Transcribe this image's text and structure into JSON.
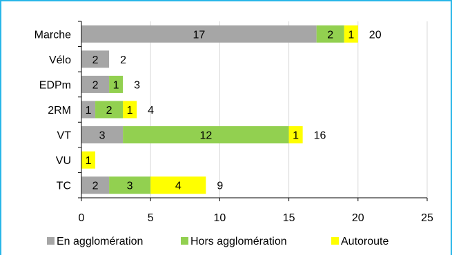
{
  "chart_data": {
    "type": "bar",
    "orientation": "horizontal",
    "stacked": true,
    "categories": [
      "Marche",
      "Vélo",
      "EDPm",
      "2RM",
      "VT",
      "VU",
      "TC"
    ],
    "series": [
      {
        "name": "En agglomération",
        "color": "#a6a6a6",
        "values": [
          17,
          2,
          2,
          1,
          3,
          0,
          2
        ]
      },
      {
        "name": "Hors agglomération",
        "color": "#92d050",
        "values": [
          2,
          0,
          1,
          2,
          12,
          0,
          3
        ]
      },
      {
        "name": "Autoroute",
        "color": "#ffff00",
        "values": [
          1,
          0,
          0,
          1,
          1,
          1,
          4
        ]
      }
    ],
    "totals": [
      20,
      2,
      3,
      4,
      16,
      null,
      9
    ],
    "xlim": [
      0,
      25
    ],
    "xticks": [
      0,
      5,
      10,
      15,
      20,
      25
    ],
    "grid": "vertical",
    "legend": "bottom",
    "title": "",
    "xlabel": "",
    "ylabel": ""
  },
  "colors": {
    "frame": "#29b6e8",
    "grid": "#d9d9d9",
    "axis": "#000000"
  }
}
